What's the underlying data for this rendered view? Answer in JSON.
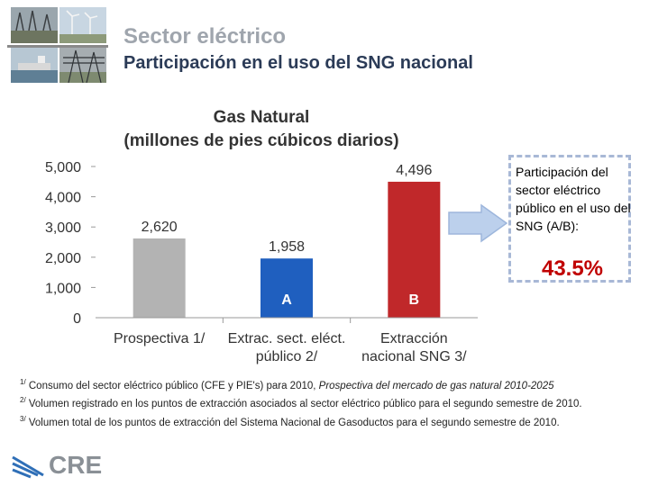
{
  "header": {
    "title": "Sector eléctrico",
    "subtitle": "Participación en el uso del SNG nacional"
  },
  "colors": {
    "bar_1": "#b3b3b3",
    "bar_2": "#1f5fbf",
    "bar_3": "#c0282a",
    "accent_red": "#c00000",
    "callout_border": "#a8b8d6"
  },
  "chart_data": {
    "type": "bar",
    "title": "Gas Natural",
    "subtitle": "(millones de pies cúbicos diarios)",
    "categories": [
      [
        "Prospectiva 1/"
      ],
      [
        "Extrac. sect. eléct.",
        "público 2/"
      ],
      [
        "Extracción",
        "nacional SNG 3/"
      ]
    ],
    "values": [
      2620,
      1958,
      4496
    ],
    "value_labels": [
      "2,620",
      "1,958",
      "4,496"
    ],
    "bar_letters": [
      "",
      "A",
      "B"
    ],
    "ylim": [
      0,
      5000
    ],
    "yticks": [
      0,
      1000,
      2000,
      3000,
      4000,
      5000
    ],
    "ytick_labels": [
      "0",
      "1,000",
      "2,000",
      "3,000",
      "4,000",
      "5,000"
    ],
    "grid": false,
    "xlabel": "",
    "ylabel": ""
  },
  "callout": {
    "text": "Participación del sector eléctrico público en el uso del SNG (A/B):",
    "value": "43.5%"
  },
  "notes": [
    {
      "sup": "1/",
      "text": "Consumo del sector eléctrico público (CFE y PIE's) para 2010, ",
      "italic": "Prospectiva del mercado de gas natural 2010-2025"
    },
    {
      "sup": "2/",
      "text": "Volumen registrado en los puntos de extracción asociados al sector eléctrico público para el segundo semestre de 2010.",
      "italic": ""
    },
    {
      "sup": "3/",
      "text": "Volumen total de los puntos de extracción del Sistema Nacional de Gasoductos para el segundo semestre de 2010.",
      "italic": ""
    }
  ],
  "logo": {
    "text": "CRE",
    "icon": "cre-logo-icon"
  }
}
